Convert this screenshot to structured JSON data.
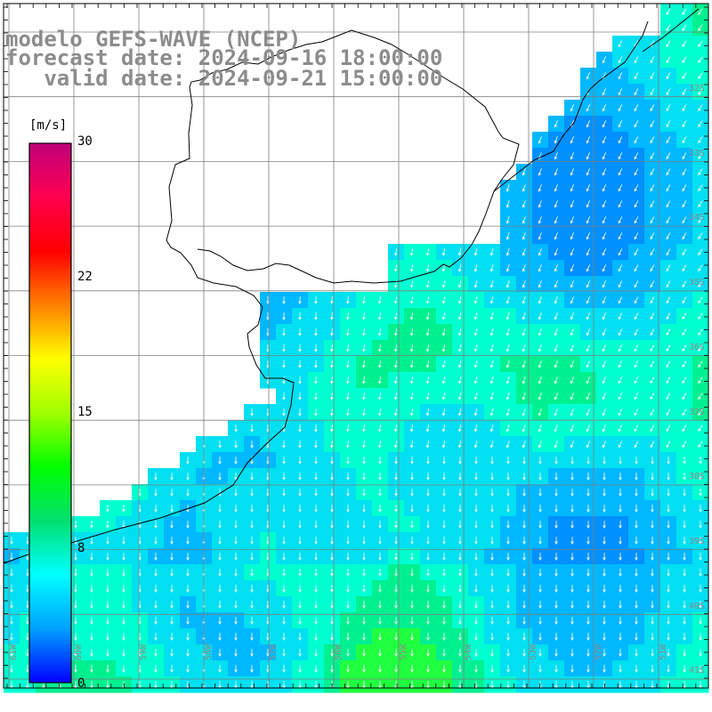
{
  "header": {
    "line1": "modelo GEFS-WAVE (NCEP)",
    "line2": "forecast date: 2024-09-16 18:00:00",
    "line3": "   valid date: 2024-09-21 15:00:00"
  },
  "colorbar": {
    "unit": "[m/s]",
    "ticks": [
      "30",
      "22",
      "15",
      "8",
      "0"
    ],
    "colors": [
      "#0000ff",
      "#00a0ff",
      "#00ffff",
      "#00e070",
      "#00ff00",
      "#a0ff00",
      "#ffff00",
      "#ff8000",
      "#ff0000",
      "#ff0050",
      "#c0007a"
    ]
  },
  "map": {
    "lat_labels": [
      "32S",
      "33S",
      "34S",
      "35S",
      "36S",
      "37S",
      "38S",
      "39S",
      "40S",
      "41S"
    ],
    "lon_labels": [
      "61W",
      "60W",
      "59W",
      "58W",
      "57W",
      "56W",
      "55W",
      "54W",
      "53W",
      "52W",
      "51W"
    ],
    "coast_color": "#000000",
    "grid_color": "#808080"
  }
}
